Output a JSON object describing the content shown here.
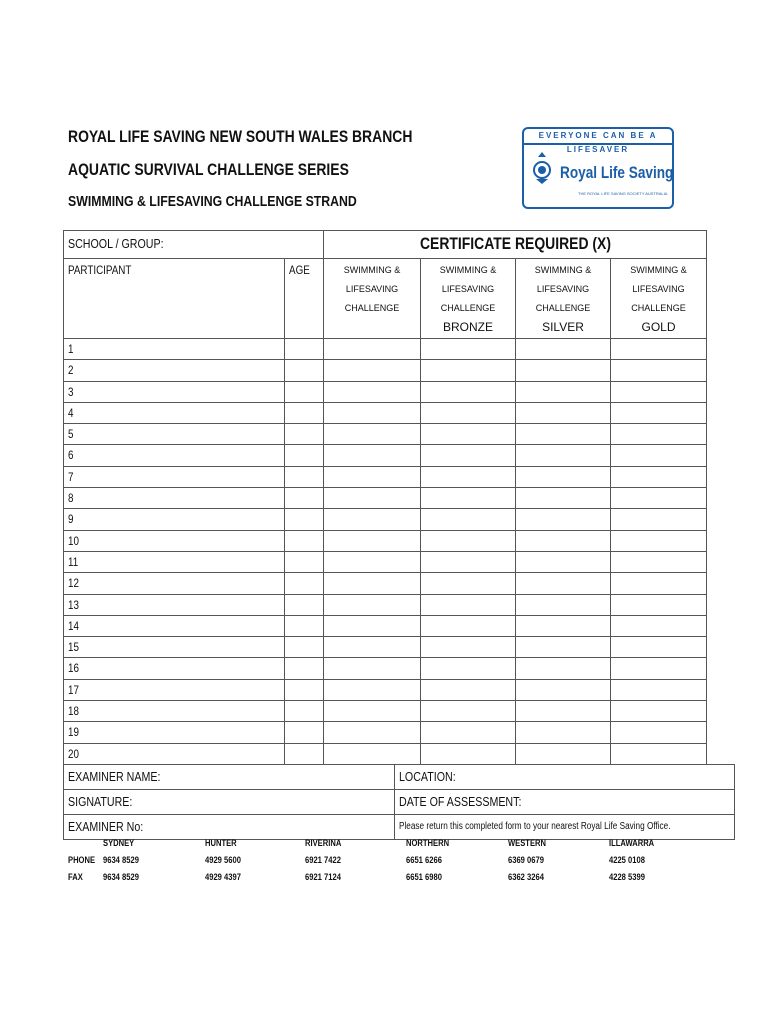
{
  "header": {
    "line1": "ROYAL LIFE SAVING NEW SOUTH WALES BRANCH",
    "line2": "AQUATIC SURVIVAL CHALLENGE SERIES",
    "line3": "SWIMMING & LIFESAVING CHALLENGE STRAND"
  },
  "logo": {
    "tagline": "EVERYONE CAN BE A LIFESAVER",
    "name": "Royal Life Saving",
    "small": "THE ROYAL LIFE SAVING SOCIETY AUSTRALIA",
    "color": "#1b5fa8"
  },
  "table": {
    "school_label": "SCHOOL / GROUP:",
    "certificate_label": "CERTIFICATE REQUIRED (X)",
    "participant_label": "PARTICIPANT",
    "age_label": "AGE",
    "cert_columns": [
      {
        "l1": "SWIMMING &",
        "l2": "LIFESAVING",
        "l3": "CHALLENGE",
        "level": ""
      },
      {
        "l1": "SWIMMING &",
        "l2": "LIFESAVING",
        "l3": "CHALLENGE",
        "level": "BRONZE"
      },
      {
        "l1": "SWIMMING &",
        "l2": "LIFESAVING",
        "l3": "CHALLENGE",
        "level": "SILVER"
      },
      {
        "l1": "SWIMMING &",
        "l2": "LIFESAVING",
        "l3": "CHALLENGE",
        "level": "GOLD"
      }
    ],
    "rows": [
      "1",
      "2",
      "3",
      "4",
      "5",
      "6",
      "7",
      "8",
      "9",
      "10",
      "11",
      "12",
      "13",
      "14",
      "15",
      "16",
      "17",
      "18",
      "19",
      "20"
    ]
  },
  "examiner": {
    "name": "EXAMINER NAME:",
    "signature": "SIGNATURE:",
    "number": "EXAMINER No:",
    "location": "LOCATION:",
    "date": "DATE OF ASSESSMENT:",
    "note": "Please return this completed form to your nearest Royal Life Saving Office."
  },
  "offices": {
    "phone_label": "PHONE",
    "fax_label": "FAX",
    "list": [
      {
        "name": "SYDNEY",
        "phone": "9634 8529",
        "fax": "9634 8529"
      },
      {
        "name": "HUNTER",
        "phone": "4929 5600",
        "fax": "4929 4397"
      },
      {
        "name": "RIVERINA",
        "phone": "6921 7422",
        "fax": "6921 7124"
      },
      {
        "name": "NORTHERN",
        "phone": "6651 6266",
        "fax": "6651 6980"
      },
      {
        "name": "WESTERN",
        "phone": "6369 0679",
        "fax": "6362 3264"
      },
      {
        "name": "ILLAWARRA",
        "phone": "4225 0108",
        "fax": "4228 5399"
      }
    ]
  }
}
